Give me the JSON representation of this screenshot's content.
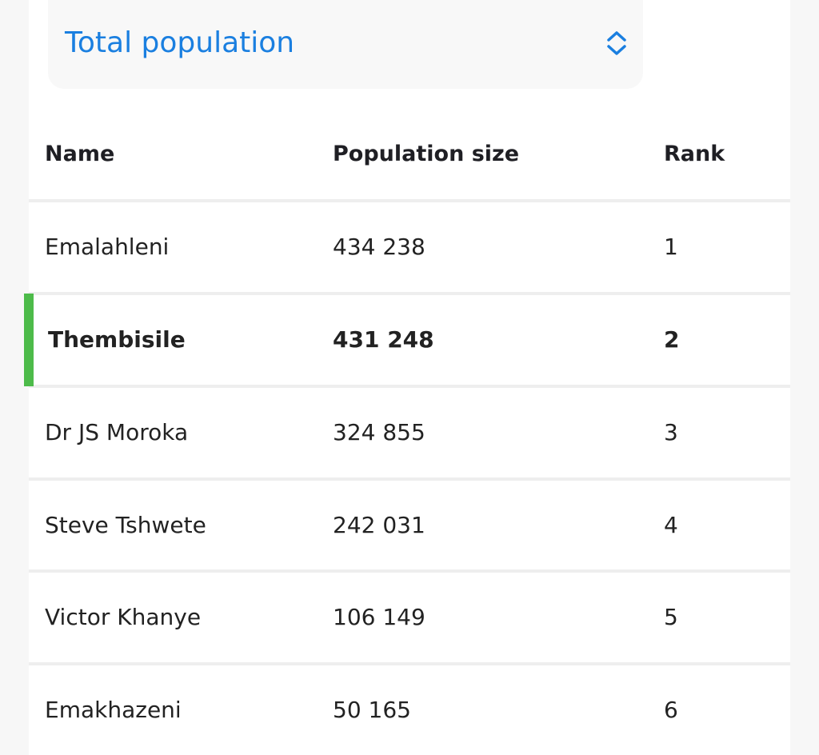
{
  "selector": {
    "label": "Total population"
  },
  "table": {
    "headers": {
      "name": "Name",
      "population": "Population size",
      "rank": "Rank"
    },
    "rows": [
      {
        "name": "Emalahleni",
        "population": "434 238",
        "rank": "1"
      },
      {
        "name": "Thembisile",
        "population": "431 248",
        "rank": "2"
      },
      {
        "name": "Dr JS Moroka",
        "population": "324 855",
        "rank": "3"
      },
      {
        "name": "Steve Tshwete",
        "population": "242 031",
        "rank": "4"
      },
      {
        "name": "Victor Khanye",
        "population": "106 149",
        "rank": "5"
      },
      {
        "name": "Emakhazeni",
        "population": "50 165",
        "rank": "6"
      }
    ],
    "highlighted_row": "Thembisile"
  },
  "colors": {
    "accent_blue": "#1a7fe0",
    "highlight_green": "#4dbb4a"
  },
  "icons": {
    "selector": "chevron-up-down-icon"
  }
}
